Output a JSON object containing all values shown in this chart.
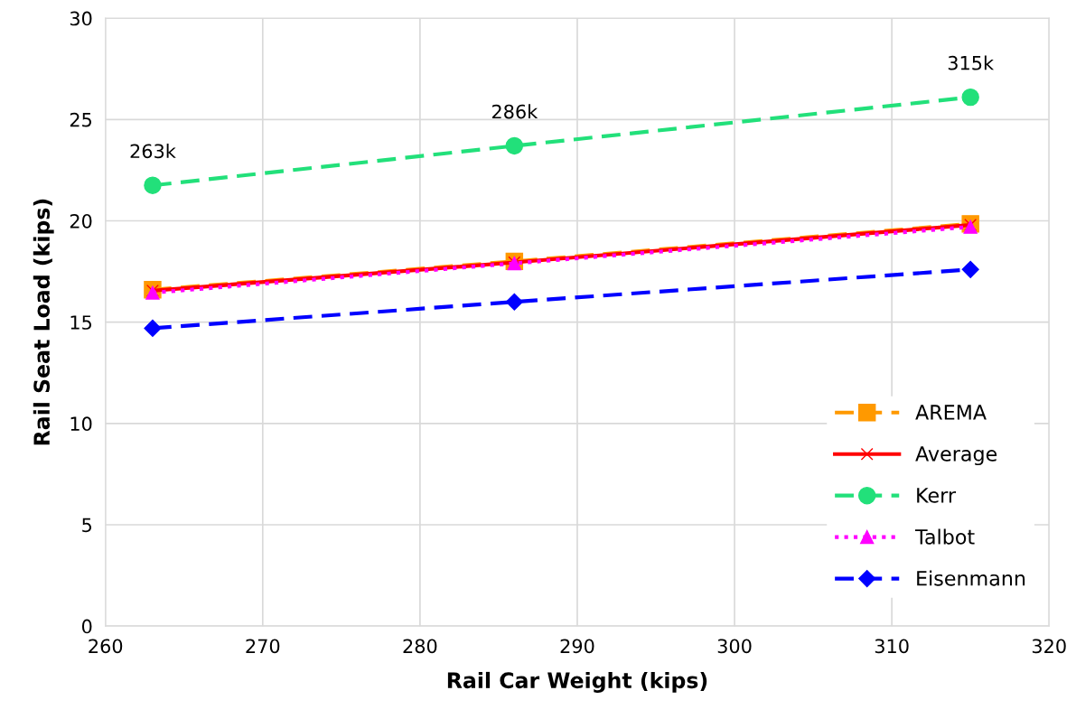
{
  "chart_data": {
    "type": "line",
    "xlabel": "Rail Car Weight (kips)",
    "ylabel": "Rail Seat Load (kips)",
    "x": [
      263,
      286,
      315
    ],
    "series": [
      {
        "name": "AREMA",
        "color": "#ff9900",
        "marker": "square",
        "line_style": "dashed",
        "values": [
          16.6,
          18.0,
          19.85
        ]
      },
      {
        "name": "Average",
        "color": "#ff0000",
        "marker": "cross",
        "line_style": "solid",
        "values": [
          16.55,
          17.95,
          19.8
        ]
      },
      {
        "name": "Kerr",
        "color": "#22e07a",
        "marker": "circle",
        "line_style": "dashed",
        "values": [
          21.75,
          23.7,
          26.1
        ]
      },
      {
        "name": "Talbot",
        "color": "#ff00ff",
        "marker": "triangle",
        "line_style": "dotted",
        "values": [
          16.45,
          17.9,
          19.7
        ]
      },
      {
        "name": "Eisenmann",
        "color": "#0000ff",
        "marker": "diamond",
        "line_style": "dashed",
        "values": [
          14.7,
          16.0,
          17.6
        ]
      }
    ],
    "annotations": [
      {
        "text": "263k",
        "x": 263,
        "y": 21.75
      },
      {
        "text": "286k",
        "x": 286,
        "y": 23.7
      },
      {
        "text": "315k",
        "x": 315,
        "y": 26.1
      }
    ],
    "xlim": [
      260,
      320
    ],
    "xticks": [
      260,
      270,
      280,
      290,
      300,
      310,
      320
    ],
    "ylim": [
      0,
      30
    ],
    "yticks": [
      0,
      5,
      10,
      15,
      20,
      25,
      30
    ],
    "grid": true,
    "legend": "bottom right"
  }
}
